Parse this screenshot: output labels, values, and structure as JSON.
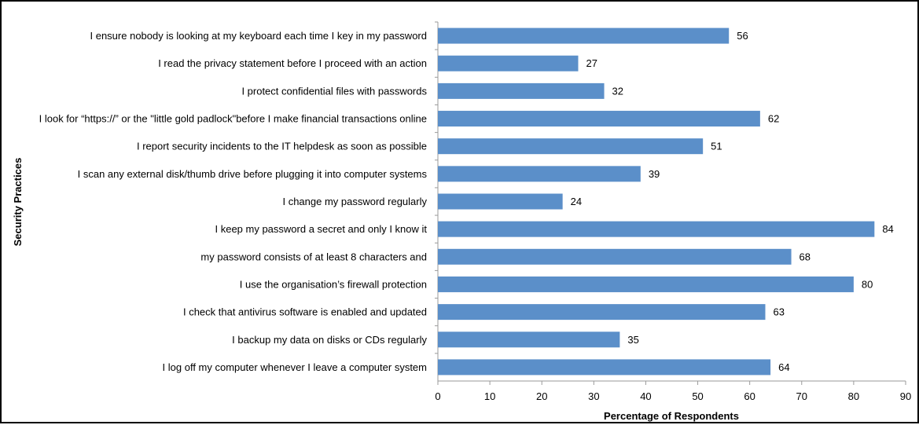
{
  "chart_data": {
    "type": "bar",
    "orientation": "horizontal",
    "categories": [
      "I ensure nobody is looking at my keyboard each time I key in my password",
      "I read the privacy statement before I proceed with an action",
      "I protect confidential files with passwords",
      "I look for “https://” or the \"little gold padlock\"before I make financial transactions online",
      "I report security incidents to the IT helpdesk as soon as possible",
      "I scan any external disk/thumb drive before plugging it into computer systems",
      "I change my password regularly",
      "I keep my password a secret and only I know it",
      "my  password consists of at least 8 characters and",
      "I use the organisation’s  firewall protection",
      "I check that antivirus software is enabled  and updated",
      "I backup my data on disks or CDs regularly",
      "I log off my computer whenever I leave a computer system"
    ],
    "values": [
      56,
      27,
      32,
      62,
      51,
      39,
      24,
      84,
      68,
      80,
      63,
      35,
      64
    ],
    "value_labels": [
      "56",
      "27",
      "32",
      "62",
      "51",
      "39",
      "24",
      "84",
      "68",
      "80",
      "63",
      "35",
      "64"
    ],
    "xlabel": "Percentage of Respondents",
    "ylabel": "Security Practices",
    "xlim": [
      0,
      90
    ],
    "x_ticks": [
      "0",
      "10",
      "20",
      "30",
      "40",
      "50",
      "60",
      "70",
      "80",
      "90"
    ],
    "bar_color": "#5b8fc9",
    "grid": false,
    "legend": "none"
  }
}
